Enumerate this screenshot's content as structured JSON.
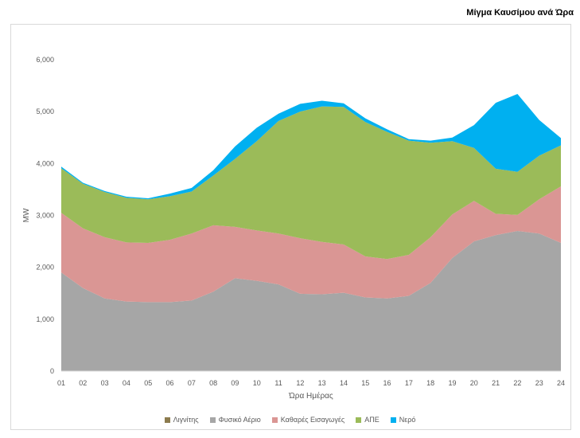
{
  "chart_data": {
    "type": "area",
    "stacked": true,
    "title": "Μίγμα Καυσίμου ανά Ώρα",
    "xlabel": "Ώρα Ημέρας",
    "ylabel": "MW",
    "ylim": [
      0,
      6000
    ],
    "yticks": [
      0,
      1000,
      2000,
      3000,
      4000,
      5000,
      6000
    ],
    "ytick_labels": [
      "0",
      "1,000",
      "2,000",
      "3,000",
      "4,000",
      "5,000",
      "6,000"
    ],
    "categories": [
      "01",
      "02",
      "03",
      "04",
      "05",
      "06",
      "07",
      "08",
      "09",
      "10",
      "11",
      "12",
      "13",
      "14",
      "15",
      "16",
      "17",
      "18",
      "19",
      "20",
      "21",
      "22",
      "23",
      "24"
    ],
    "grid": false,
    "legend_position": "bottom",
    "series": [
      {
        "name": "Λιγνίτης",
        "color": "#8c7b4e",
        "values": [
          0,
          0,
          0,
          0,
          0,
          0,
          0,
          0,
          0,
          0,
          0,
          0,
          0,
          0,
          0,
          0,
          0,
          0,
          0,
          0,
          0,
          0,
          0,
          0
        ]
      },
      {
        "name": "Φυσικό Αέριο",
        "color": "#a6a6a6",
        "values": [
          1900,
          1600,
          1400,
          1340,
          1330,
          1330,
          1360,
          1530,
          1790,
          1740,
          1670,
          1490,
          1480,
          1510,
          1420,
          1400,
          1450,
          1700,
          2180,
          2500,
          2620,
          2700,
          2650,
          2470
        ]
      },
      {
        "name": "Καθαρές Εισαγωγές",
        "color": "#da9694",
        "values": [
          1150,
          1150,
          1180,
          1140,
          1140,
          1200,
          1290,
          1280,
          990,
          970,
          980,
          1070,
          1010,
          930,
          790,
          760,
          790,
          880,
          840,
          780,
          410,
          310,
          660,
          1090
        ]
      },
      {
        "name": "ΑΠΕ",
        "color": "#9bbb59",
        "values": [
          860,
          860,
          870,
          860,
          840,
          840,
          810,
          960,
          1310,
          1720,
          2170,
          2440,
          2610,
          2650,
          2590,
          2450,
          2200,
          1820,
          1410,
          1020,
          870,
          830,
          840,
          790
        ]
      },
      {
        "name": "Νερό",
        "color": "#00b0f0",
        "values": [
          30,
          20,
          20,
          20,
          20,
          50,
          70,
          100,
          240,
          260,
          140,
          150,
          110,
          70,
          70,
          50,
          30,
          40,
          70,
          440,
          1270,
          1500,
          690,
          140
        ]
      }
    ]
  }
}
